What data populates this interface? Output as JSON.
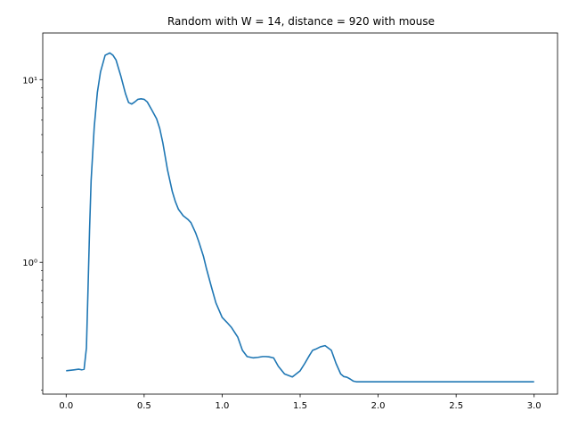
{
  "chart_data": {
    "type": "line",
    "title": "Random with W = 14, distance = 920 with mouse",
    "xlabel": "",
    "ylabel": "",
    "xscale": "linear",
    "yscale": "log",
    "xlim": [
      -0.15,
      3.15
    ],
    "ylim": [
      0.19,
      18.0
    ],
    "grid": false,
    "legend": "none",
    "xticks": [
      0.0,
      0.5,
      1.0,
      1.5,
      2.0,
      2.5,
      3.0
    ],
    "xtick_labels": [
      "0.0",
      "0.5",
      "1.0",
      "1.5",
      "2.0",
      "2.5",
      "3.0"
    ],
    "yticks_major": [
      1,
      10
    ],
    "ytick_labels": [
      "10⁰",
      "10¹"
    ],
    "yticks_minor": [
      0.2,
      0.3,
      0.4,
      0.5,
      0.6,
      0.7,
      0.8,
      0.9,
      2,
      3,
      4,
      5,
      6,
      7,
      8,
      9
    ],
    "series": [
      {
        "name": "",
        "color": "#1f77b4",
        "x": [
          0.0,
          0.05,
          0.08,
          0.1,
          0.115,
          0.13,
          0.14,
          0.15,
          0.16,
          0.18,
          0.2,
          0.22,
          0.25,
          0.28,
          0.3,
          0.32,
          0.35,
          0.38,
          0.4,
          0.42,
          0.44,
          0.46,
          0.48,
          0.5,
          0.52,
          0.55,
          0.58,
          0.6,
          0.62,
          0.65,
          0.68,
          0.7,
          0.72,
          0.75,
          0.78,
          0.8,
          0.83,
          0.85,
          0.88,
          0.9,
          0.93,
          0.96,
          1.0,
          1.03,
          1.06,
          1.1,
          1.13,
          1.16,
          1.2,
          1.23,
          1.26,
          1.28,
          1.3,
          1.33,
          1.36,
          1.4,
          1.45,
          1.5,
          1.53,
          1.56,
          1.58,
          1.6,
          1.63,
          1.66,
          1.7,
          1.73,
          1.76,
          1.78,
          1.8,
          1.82,
          1.84,
          1.86,
          1.88,
          1.9,
          1.92,
          1.95,
          1.98,
          2.0,
          2.1,
          2.3,
          2.5,
          2.7,
          2.9,
          3.0
        ],
        "y": [
          0.255,
          0.258,
          0.26,
          0.258,
          0.26,
          0.34,
          0.7,
          1.5,
          2.8,
          5.5,
          8.5,
          11.0,
          13.6,
          14.0,
          13.6,
          12.8,
          10.5,
          8.4,
          7.5,
          7.35,
          7.55,
          7.8,
          7.85,
          7.8,
          7.55,
          6.8,
          6.1,
          5.4,
          4.5,
          3.2,
          2.45,
          2.15,
          1.95,
          1.8,
          1.72,
          1.65,
          1.45,
          1.3,
          1.08,
          0.92,
          0.74,
          0.6,
          0.5,
          0.47,
          0.44,
          0.39,
          0.33,
          0.305,
          0.3,
          0.302,
          0.305,
          0.305,
          0.304,
          0.3,
          0.27,
          0.245,
          0.236,
          0.255,
          0.28,
          0.31,
          0.33,
          0.335,
          0.345,
          0.35,
          0.33,
          0.28,
          0.245,
          0.237,
          0.235,
          0.23,
          0.224,
          0.222,
          0.222,
          0.222,
          0.222,
          0.222,
          0.222,
          0.222,
          0.222,
          0.222,
          0.222,
          0.222,
          0.222,
          0.222
        ]
      }
    ]
  }
}
